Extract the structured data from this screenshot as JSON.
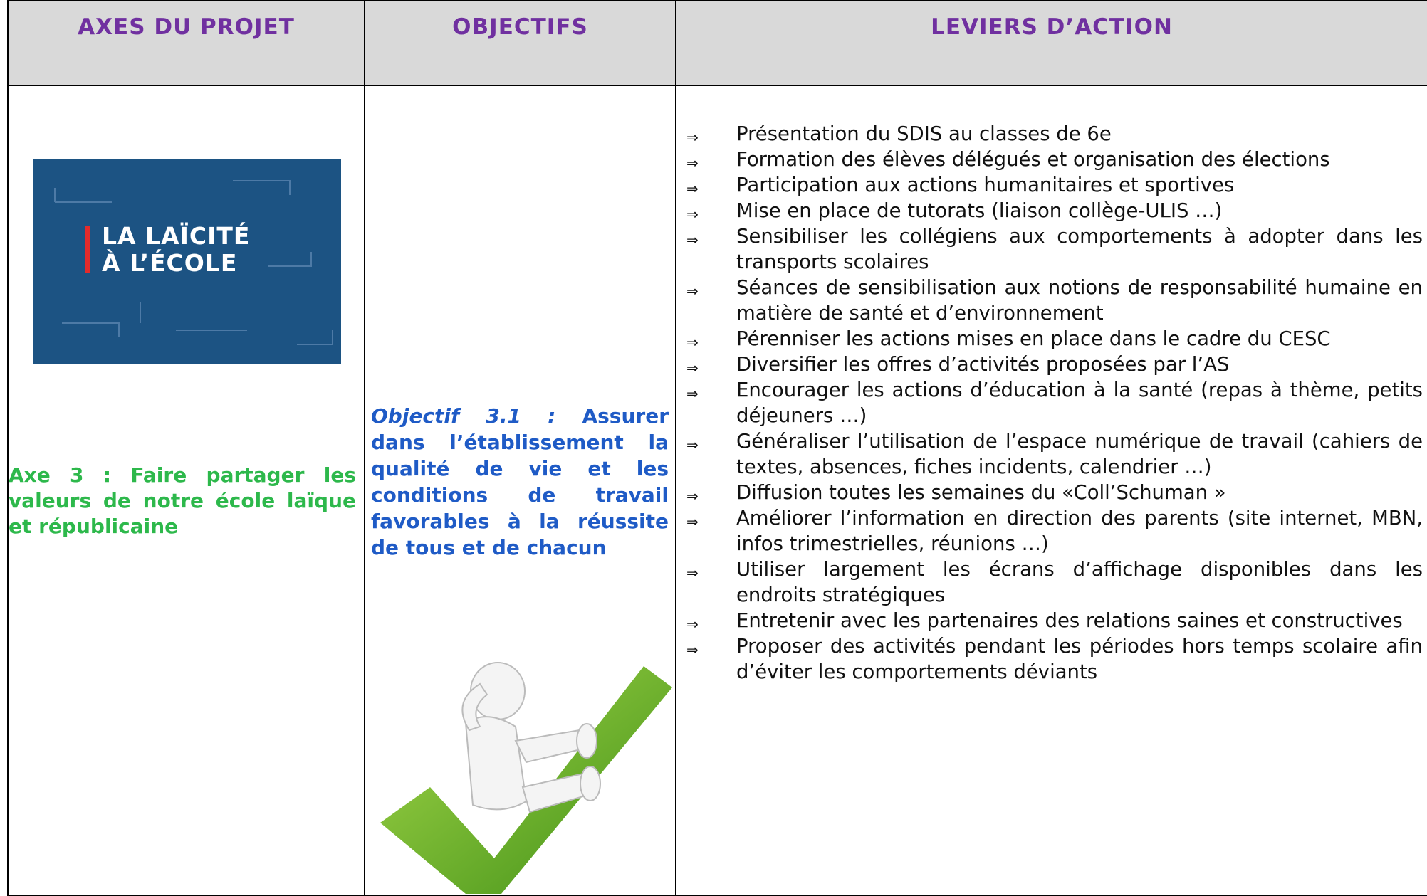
{
  "header": {
    "columns": [
      "AXES DU PROJET",
      "OBJECTIFS",
      "LEVIERS D’ACTION"
    ]
  },
  "axis": {
    "logo_text": [
      "LA LAÏCITÉ",
      "À L’ÉCOLE"
    ],
    "label": "Axe 3 : Faire partager les valeurs de notre école laïque et républicaine"
  },
  "objective": {
    "label": "Objectif 3.1 :",
    "text": "Assurer dans l’établissement la qualité de vie et les conditions de travail favorables à la réussite de tous et de chacun"
  },
  "levers": [
    "Présentation du SDIS au classes de 6e",
    "Formation des élèves délégués et organisation des élections",
    "Participation aux actions humanitaires et sportives",
    "Mise en place de tutorats (liaison collège-ULIS …)",
    "Sensibiliser les collégiens aux comportements à adopter dans les transports scolaires",
    "Séances de sensibilisation aux notions de responsabilité humaine en matière de santé et d’environnement",
    "Pérenniser les actions mises en place dans le cadre du CESC",
    "Diversifier les offres d’activités proposées par l’AS",
    "Encourager les actions d’éducation à la santé (repas à thème, petits déjeuners …)",
    "Généraliser l’utilisation de l’espace numérique de travail (cahiers de textes, absences, fiches incidents, calendrier …)",
    "Diffusion toutes les semaines du «Coll’Schuman »",
    "Améliorer l’information en direction des parents (site internet, MBN, infos trimestrielles, réunions …)",
    "Utiliser largement les écrans d’affichage disponibles dans les endroits stratégiques",
    "Entretenir avec les partenaires des relations saines et constructives",
    "Proposer des activités pendant les périodes hors temps scolaire afin d’éviter les comportements déviants"
  ]
}
